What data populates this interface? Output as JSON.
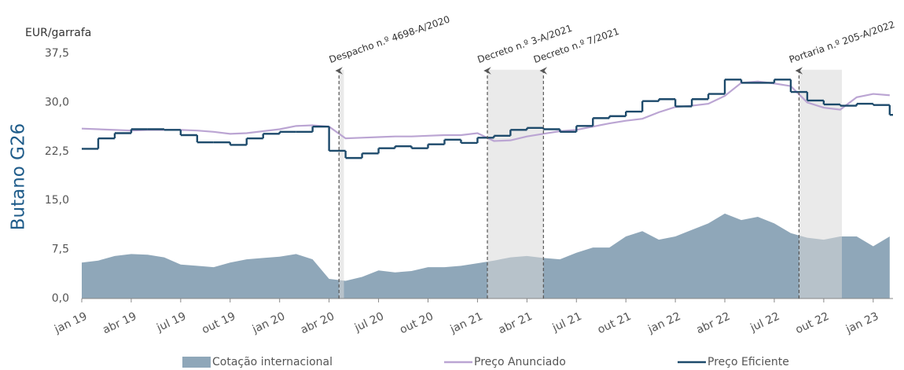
{
  "chart_data": {
    "type": "line",
    "y_title": "EUR/garrafa",
    "side_title": "Butano G26",
    "x": [
      0,
      1,
      2,
      3,
      4,
      5,
      6,
      7,
      8,
      9,
      10,
      11,
      12,
      13,
      14,
      15,
      16,
      17,
      18,
      19,
      20,
      21,
      22,
      23,
      24,
      25,
      26,
      27,
      28,
      29,
      30,
      31,
      32,
      33,
      34,
      35,
      36,
      37,
      38,
      39,
      40,
      41,
      42,
      43,
      44,
      45,
      46,
      47,
      48,
      49
    ],
    "xlim": [
      0,
      49.2
    ],
    "xticks": [
      {
        "value": 0,
        "label": "jan 19"
      },
      {
        "value": 3,
        "label": "abr 19"
      },
      {
        "value": 6,
        "label": "jul 19"
      },
      {
        "value": 9,
        "label": "out 19"
      },
      {
        "value": 12,
        "label": "jan 20"
      },
      {
        "value": 15,
        "label": "abr 20"
      },
      {
        "value": 18,
        "label": "jul 20"
      },
      {
        "value": 21,
        "label": "out 20"
      },
      {
        "value": 24,
        "label": "jan 21"
      },
      {
        "value": 27,
        "label": "abr 21"
      },
      {
        "value": 30,
        "label": "jul 21"
      },
      {
        "value": 33,
        "label": "out 21"
      },
      {
        "value": 36,
        "label": "jan 22"
      },
      {
        "value": 39,
        "label": "abr 22"
      },
      {
        "value": 42,
        "label": "jul 22"
      },
      {
        "value": 45,
        "label": "out 22"
      },
      {
        "value": 48,
        "label": "jan 23"
      }
    ],
    "ylim": [
      0,
      37.5
    ],
    "yticks": [
      {
        "value": 0,
        "label": "0,0"
      },
      {
        "value": 7.5,
        "label": "7,5"
      },
      {
        "value": 15,
        "label": "15,0"
      },
      {
        "value": 22.5,
        "label": "22,5"
      },
      {
        "value": 30,
        "label": "30,0"
      },
      {
        "value": 37.5,
        "label": "37,5"
      }
    ],
    "series": [
      {
        "name": "Cotação internacional",
        "style": "area",
        "color": "#8fa7b9",
        "values": [
          5.5,
          5.8,
          6.5,
          6.8,
          6.7,
          6.3,
          5.2,
          5.0,
          4.8,
          5.5,
          6.0,
          6.2,
          6.4,
          6.8,
          6.0,
          3.0,
          2.7,
          3.3,
          4.3,
          4.0,
          4.2,
          4.8,
          4.8,
          5.0,
          5.4,
          5.8,
          6.3,
          6.5,
          6.2,
          6.0,
          7.0,
          7.8,
          7.8,
          9.5,
          10.3,
          9.0,
          9.5,
          10.5,
          11.5,
          13.0,
          12.0,
          12.5,
          11.5,
          10.0,
          9.3,
          9.0,
          9.5,
          9.5,
          8.0,
          9.5
        ]
      },
      {
        "name": "Preço Anunciado",
        "style": "line",
        "color": "#bba5d3",
        "values": [
          26.0,
          25.9,
          25.8,
          25.7,
          25.8,
          25.8,
          25.8,
          25.7,
          25.5,
          25.2,
          25.3,
          25.6,
          25.9,
          26.4,
          26.5,
          26.3,
          24.5,
          24.6,
          24.7,
          24.8,
          24.8,
          24.9,
          25.0,
          25.0,
          25.3,
          24.1,
          24.2,
          24.8,
          25.2,
          25.6,
          25.8,
          26.3,
          26.8,
          27.2,
          27.5,
          28.5,
          29.3,
          29.5,
          29.8,
          31.0,
          33.0,
          33.2,
          32.9,
          32.5,
          30.0,
          29.2,
          28.9,
          30.8,
          31.3,
          31.1
        ]
      },
      {
        "name": "Preço Eficiente",
        "style": "step",
        "color": "#1d4a6b",
        "values": [
          22.9,
          24.5,
          25.3,
          25.9,
          25.9,
          25.8,
          25.0,
          23.9,
          23.9,
          23.5,
          24.5,
          25.2,
          25.5,
          25.5,
          26.3,
          22.6,
          21.5,
          22.2,
          23.0,
          23.3,
          23.0,
          23.6,
          24.3,
          23.8,
          24.6,
          24.9,
          25.8,
          26.1,
          25.9,
          25.5,
          26.4,
          27.6,
          27.9,
          28.6,
          30.2,
          30.5,
          29.4,
          30.5,
          31.3,
          33.5,
          33.0,
          33.0,
          33.5,
          31.6,
          30.3,
          29.7,
          29.5,
          29.8,
          29.6,
          28.1
        ]
      }
    ],
    "periods": [
      [
        15.6,
        15.9
      ],
      [
        24.6,
        28.0
      ],
      [
        43.5,
        46.1
      ]
    ],
    "annotations": [
      {
        "label": "Despacho n.º 4698-A/2020",
        "x": 15.6
      },
      {
        "label": "Decreto n.º 3-A/2021",
        "x": 24.6
      },
      {
        "label": "Decreto n.º 7/2021",
        "x": 28.0
      },
      {
        "label": "Portaria n.º 205-A/2022",
        "x": 43.5
      }
    ]
  }
}
